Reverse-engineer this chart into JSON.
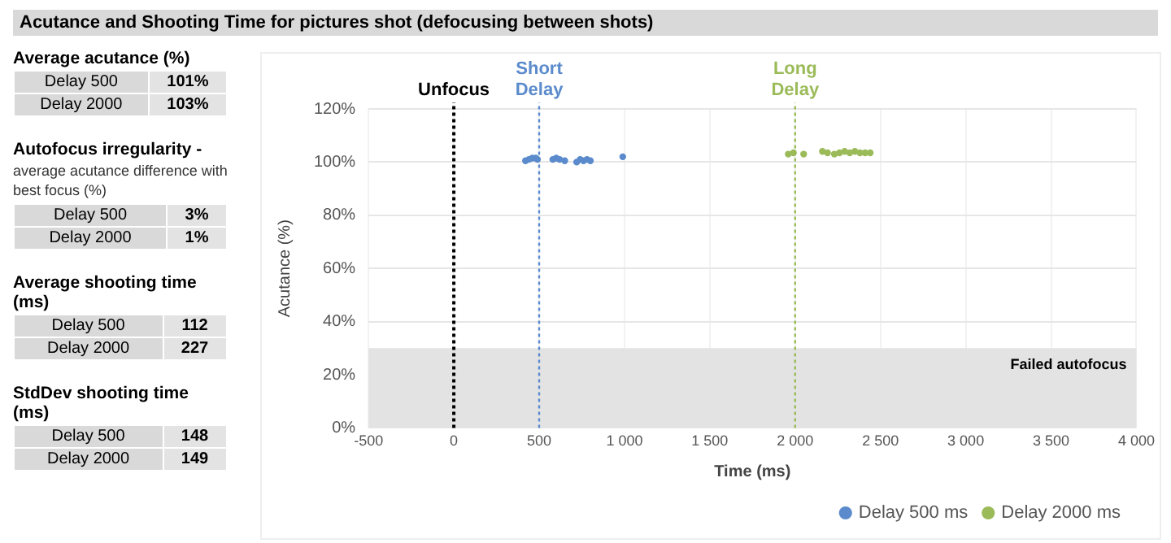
{
  "chart_data": [
    {
      "type": "other",
      "title": "Average acutance (%)",
      "annotations": [
        "Delay 500",
        "101%",
        "Delay 2000",
        "103%"
      ]
    },
    {
      "type": "other",
      "title": "Autofocus irregularity -",
      "subtitle": "average acutance difference with best focus (%)",
      "annotations": [
        "Delay 500",
        "3%",
        "Delay 2000",
        "1%"
      ]
    },
    {
      "type": "other",
      "title": "Average shooting time (ms)",
      "annotations": [
        "Delay 500",
        "112",
        "Delay 2000",
        "227"
      ]
    },
    {
      "type": "other",
      "title": "StdDev shooting time (ms)",
      "annotations": [
        "Delay 500",
        "148",
        "Delay 2000",
        "149"
      ]
    },
    {
      "type": "scatter",
      "title": "Acutance and Shooting Time for pictures shot (defocusing between shots)",
      "xlabel": "Time (ms)",
      "ylabel": "Acutance (%)",
      "xlim": [
        -500,
        4000
      ],
      "xticks": [
        -500,
        0,
        500,
        {
          "value": 1000,
          "label": "1 000"
        },
        {
          "value": 1500,
          "label": "1 500"
        },
        {
          "value": 2000,
          "label": "2 000"
        },
        {
          "value": 2500,
          "label": "2 500"
        },
        {
          "value": 3000,
          "label": "3 000"
        },
        {
          "value": 3500,
          "label": "3 500"
        },
        {
          "value": 4000,
          "label": "4 000"
        }
      ],
      "ylim": [
        0,
        120
      ],
      "yticks": [
        {
          "value": 0,
          "label": "0%"
        },
        {
          "value": 20,
          "label": "20%"
        },
        {
          "value": 40,
          "label": "40%"
        },
        {
          "value": 60,
          "label": "60%"
        },
        {
          "value": 80,
          "label": "80%"
        },
        {
          "value": 100,
          "label": "100%"
        },
        {
          "value": 120,
          "label": "120%"
        }
      ],
      "grid": true,
      "legend": "bottom right",
      "marker": "circle",
      "series": [
        {
          "name": "Delay 500 ms",
          "color": "#5b8bcc",
          "x": [
            420,
            440,
            460,
            480,
            490,
            580,
            600,
            620,
            650,
            720,
            740,
            760,
            780,
            800,
            990
          ],
          "values": [
            100.5,
            101,
            101.5,
            101.5,
            101,
            101,
            101.5,
            101,
            100.5,
            100,
            101,
            100.5,
            101,
            100.5,
            102
          ]
        },
        {
          "name": "Delay 2000 ms",
          "color": "#9bbb59",
          "x": [
            1960,
            1990,
            2050,
            2160,
            2190,
            2230,
            2260,
            2290,
            2320,
            2350,
            2380,
            2410,
            2440
          ],
          "values": [
            103,
            103.5,
            103,
            104,
            103.5,
            103,
            103.5,
            104,
            103.5,
            104,
            103.5,
            103.5,
            103.5
          ]
        }
      ],
      "ref_lines": [
        {
          "axis": "x",
          "value": 0,
          "label": "Unfocus",
          "color": "#000000",
          "line_style": "dotted"
        },
        {
          "axis": "x",
          "value": 500,
          "label": "Short Delay",
          "color": "#5b8bcc",
          "line_style": "dotted"
        },
        {
          "axis": "x",
          "value": 2000,
          "label": "Long Delay",
          "color": "#9bbb59",
          "line_style": "dotted"
        }
      ],
      "bands": [
        {
          "axis": "y",
          "from": 0,
          "to": 30,
          "label": "Failed autofocus",
          "color": "#e3e3e3"
        }
      ]
    }
  ]
}
